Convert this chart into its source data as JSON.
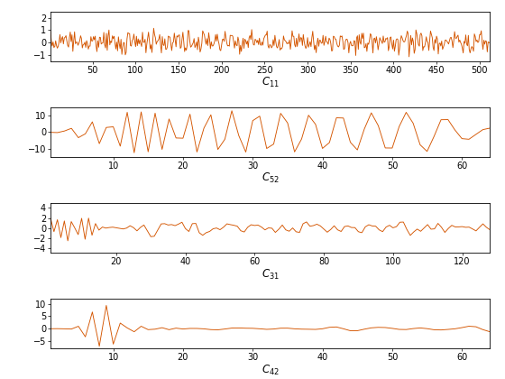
{
  "line_color": "#D45500",
  "background": "#ffffff",
  "subplots": [
    {
      "xlabel": "$C_{11}$",
      "xlim": [
        1,
        512
      ],
      "ylim": [
        -1.5,
        2.5
      ],
      "yticks": [
        -1,
        0,
        1,
        2
      ],
      "xticks": [
        50,
        100,
        150,
        200,
        250,
        300,
        350,
        400,
        450,
        500
      ]
    },
    {
      "xlabel": "$C_{52}$",
      "xlim": [
        1,
        64
      ],
      "ylim": [
        -15,
        15
      ],
      "yticks": [
        -10,
        0,
        10
      ],
      "xticks": [
        10,
        20,
        30,
        40,
        50,
        60
      ]
    },
    {
      "xlabel": "$C_{31}$",
      "xlim": [
        1,
        128
      ],
      "ylim": [
        -5,
        5
      ],
      "yticks": [
        -4,
        -2,
        0,
        2,
        4
      ],
      "xticks": [
        20,
        40,
        60,
        80,
        100,
        120
      ]
    },
    {
      "xlabel": "$C_{42}$",
      "xlim": [
        1,
        64
      ],
      "ylim": [
        -8,
        12
      ],
      "yticks": [
        -5,
        0,
        5,
        10
      ],
      "xticks": [
        10,
        20,
        30,
        40,
        50,
        60
      ]
    }
  ]
}
